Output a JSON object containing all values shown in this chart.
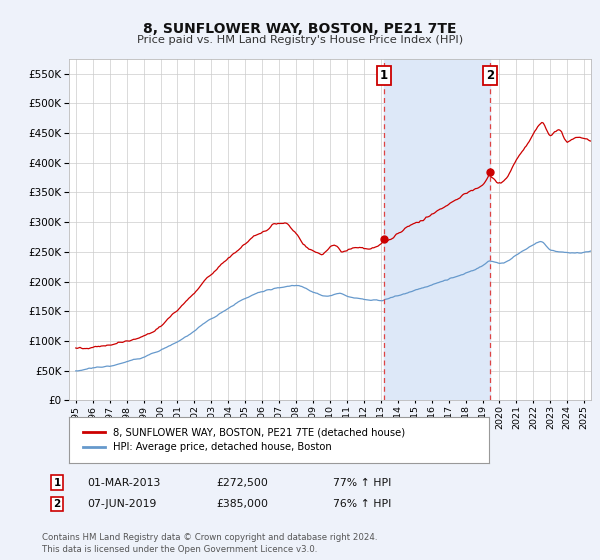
{
  "title": "8, SUNFLOWER WAY, BOSTON, PE21 7TE",
  "subtitle": "Price paid vs. HM Land Registry's House Price Index (HPI)",
  "red_label": "8, SUNFLOWER WAY, BOSTON, PE21 7TE (detached house)",
  "blue_label": "HPI: Average price, detached house, Boston",
  "annotation1": {
    "num": "1",
    "date": "01-MAR-2013",
    "price": "£272,500",
    "pct": "77% ↑ HPI"
  },
  "annotation2": {
    "num": "2",
    "date": "07-JUN-2019",
    "price": "£385,000",
    "pct": "76% ↑ HPI"
  },
  "footer": "Contains HM Land Registry data © Crown copyright and database right 2024.\nThis data is licensed under the Open Government Licence v3.0.",
  "vline1_x": 2013.17,
  "vline2_x": 2019.44,
  "ylim_max": 575000,
  "xlim_start": 1994.6,
  "xlim_end": 2025.4,
  "bg_color": "#eef2fa",
  "plot_bg": "#ffffff",
  "grid_color": "#cccccc",
  "red_color": "#cc0000",
  "blue_color": "#6699cc",
  "vline_color": "#dd4444",
  "span_color": "#dde8f8",
  "yticks": [
    0,
    50000,
    100000,
    150000,
    200000,
    250000,
    300000,
    350000,
    400000,
    450000,
    500000,
    550000
  ]
}
